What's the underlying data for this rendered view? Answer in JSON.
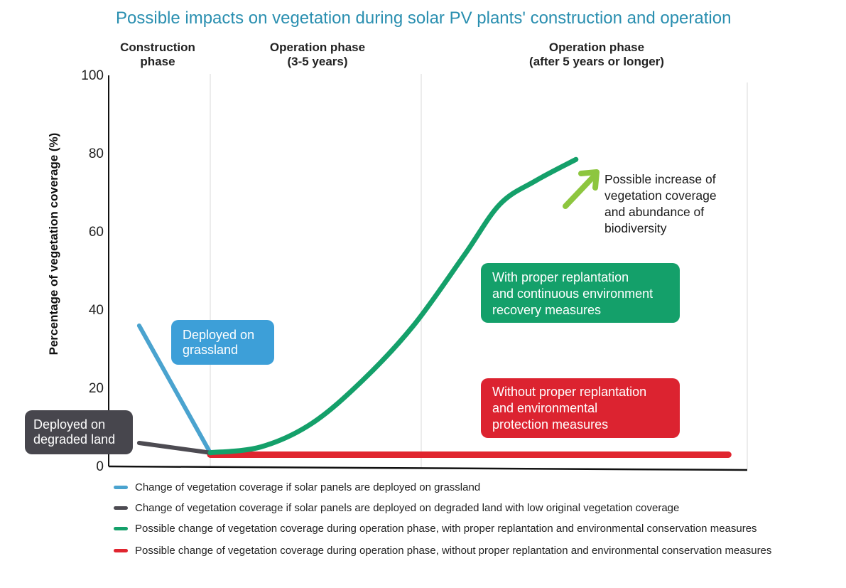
{
  "chart_data": {
    "type": "line",
    "title": "Possible impacts on vegetation during solar PV plants' construction and operation",
    "ylabel": "Percentage of vegetation coverage (%)",
    "xlabel": "",
    "ylim": [
      0,
      100
    ],
    "yticks": [
      0,
      20,
      40,
      60,
      80,
      100
    ],
    "phases": [
      {
        "line1": "Construction",
        "line2": "phase"
      },
      {
        "line1": "Operation phase",
        "line2": "(3-5 years)"
      },
      {
        "line1": "Operation phase",
        "line2": "(after 5 years or longer)"
      }
    ],
    "series": [
      {
        "name": "grassland",
        "color": "#4aa3cf",
        "points": [
          [
            0.3,
            36
          ],
          [
            1.0,
            3.5
          ]
        ]
      },
      {
        "name": "degraded",
        "color": "#4d4b52",
        "points": [
          [
            0.3,
            6
          ],
          [
            1.0,
            3.5
          ]
        ]
      },
      {
        "name": "with-replantation",
        "color": "#14a06a",
        "points": [
          [
            1.0,
            3.5
          ],
          [
            1.5,
            5
          ],
          [
            2.0,
            11
          ],
          [
            2.5,
            22
          ],
          [
            3.0,
            36
          ],
          [
            3.5,
            54
          ],
          [
            3.85,
            67
          ],
          [
            4.2,
            73
          ],
          [
            4.6,
            78.5
          ]
        ]
      },
      {
        "name": "without-replantation",
        "color": "#e0252f",
        "points": [
          [
            1.0,
            3
          ],
          [
            4.2,
            3
          ],
          [
            6.1,
            3
          ]
        ]
      }
    ],
    "callouts": {
      "grassland": "Deployed on|grassland",
      "degraded": "Deployed on|degraded land",
      "with": "With proper replantation|and continuous environment|recovery measures",
      "without": "Without proper replantation|and environmental|protection measures",
      "increase": "Possible increase of|vegetation coverage|and abundance of|biodiversity"
    },
    "legend": [
      {
        "color": "#4aa3cf",
        "label": "Change of vegetation coverage if solar panels are deployed on grassland"
      },
      {
        "color": "#4d4b52",
        "label": "Change of vegetation coverage if solar panels are deployed on degraded land with low original vegetation coverage"
      },
      {
        "color": "#14a06a",
        "label": "Possible change of vegetation coverage during operation phase, with proper replantation and environmental conservation measures"
      },
      {
        "color": "#e0252f",
        "label": "Possible change of vegetation coverage during operation phase, without proper replantation and environmental conservation measures"
      }
    ],
    "colors": {
      "grassland_box": "#3d9fd8",
      "degraded_box": "#47464d",
      "with_box": "#14a06a",
      "without_box": "#dc2330",
      "arrow": "#8dc63f"
    }
  }
}
